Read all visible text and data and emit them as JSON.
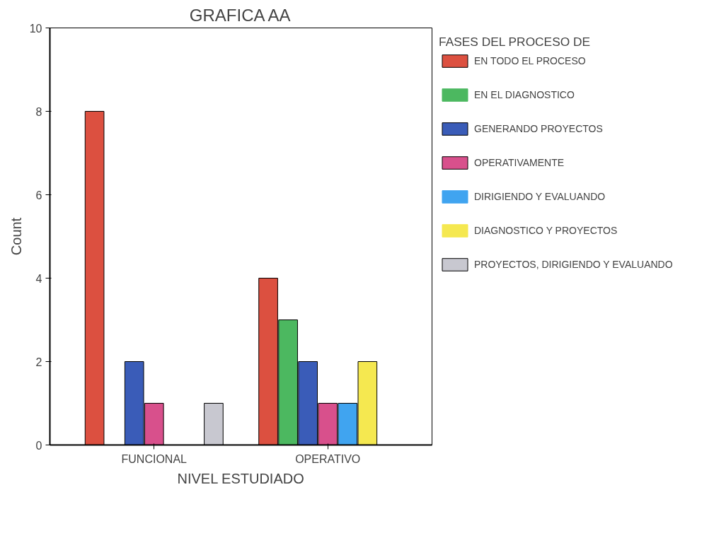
{
  "chart_data": {
    "type": "bar",
    "title": "GRAFICA AA",
    "xlabel": "NIVEL ESTUDIADO",
    "ylabel": "Count",
    "legend_title": "FASES DEL PROCESO DE",
    "categories": [
      "FUNCIONAL",
      "OPERATIVO"
    ],
    "series": [
      {
        "name": "EN TODO EL PROCESO",
        "color": "#dc5040",
        "values": [
          8,
          4
        ]
      },
      {
        "name": "EN EL DIAGNOSTICO",
        "color": "#4cb860",
        "values": [
          0,
          3
        ]
      },
      {
        "name": "GENERANDO PROYECTOS",
        "color": "#3a5cb8",
        "values": [
          2,
          2
        ]
      },
      {
        "name": "OPERATIVAMENTE",
        "color": "#d8508c",
        "values": [
          1,
          1
        ]
      },
      {
        "name": "DIRIGIENDO Y EVALUANDO",
        "color": "#40a4f0",
        "values": [
          0,
          1
        ]
      },
      {
        "name": "DIAGNOSTICO Y PROYECTOS",
        "color": "#f5e850",
        "values": [
          0,
          2
        ]
      },
      {
        "name": "PROYECTOS, DIRIGIENDO Y EVALUANDO",
        "color": "#c8c8d0",
        "values": [
          1,
          0
        ]
      }
    ],
    "ylim": [
      0,
      10
    ],
    "yticks": [
      0,
      2,
      4,
      6,
      8,
      10
    ],
    "grid": false,
    "legend": "right"
  }
}
